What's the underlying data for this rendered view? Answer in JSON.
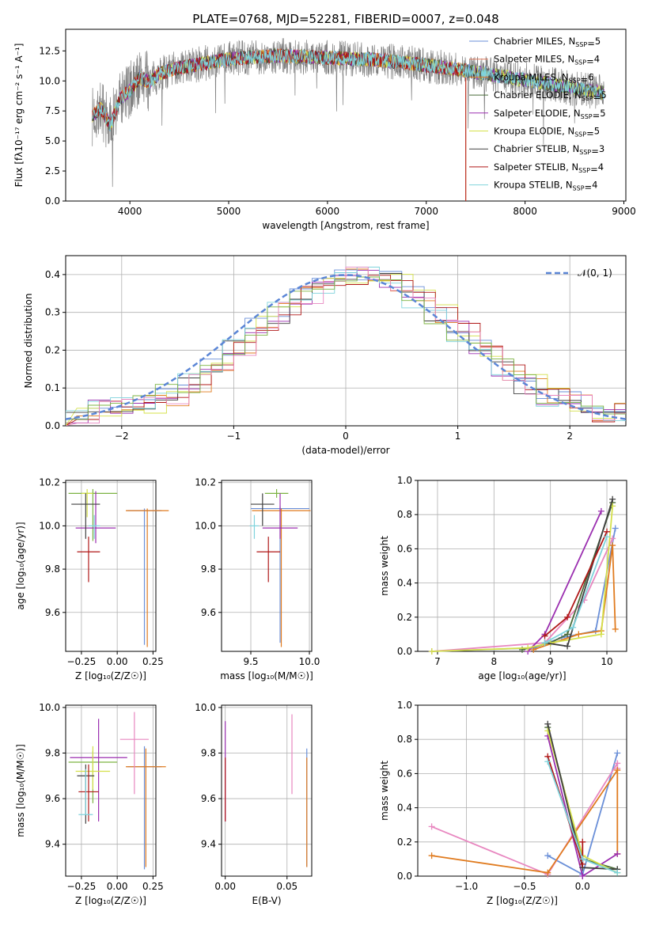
{
  "figure_title": "PLATE=0768, MJD=52281, FIBERID=0007, z=0.048",
  "colors": {
    "Chabrier MILES": "#6a8fd8",
    "Salpeter MILES": "#e07a5f",
    "Kroupa MILES": "#e07b1f",
    "Chabrier ELODIE": "#4a6b3a",
    "Salpeter ELODIE": "#9b2fb0",
    "Kroupa ELODIE": "#d4e04a",
    "Chabrier STELIB": "#404040",
    "Salpeter STELIB": "#b01818",
    "Kroupa STELIB": "#7fd3dc",
    "extra_pink": "#e887c0",
    "extra_green": "#7cb342",
    "data": "#808080",
    "normal": "#5b86d6",
    "grid": "#b0b0b0"
  },
  "chart_data": [
    {
      "type": "line",
      "panel": "spectrum",
      "title": "PLATE=0768, MJD=52281, FIBERID=0007, z=0.048",
      "xlabel": "wavelength [Angstrom, rest frame]",
      "ylabel": "Flux [fλ10⁻¹⁷ erg cm⁻² s⁻¹ A⁻¹]",
      "xlim": [
        3350,
        9020
      ],
      "ylim": [
        0,
        14.3
      ],
      "xticks": [
        4000,
        5000,
        6000,
        7000,
        8000,
        9000
      ],
      "yticks": [
        0.0,
        2.5,
        5.0,
        7.5,
        10.0,
        12.5
      ],
      "ytick_labels": [
        "0.0",
        "2.5",
        "5.0",
        "7.5",
        "10.0",
        "12.5"
      ],
      "legend_position": "right",
      "legend": [
        {
          "name": "Chabrier MILES",
          "nssp": "5"
        },
        {
          "name": "Salpeter MILES",
          "nssp": "4"
        },
        {
          "name": "Kroupa MILES",
          "nssp": "6"
        },
        {
          "name": "Chabrier ELODIE",
          "nssp": "5"
        },
        {
          "name": "Salpeter ELODIE",
          "nssp": "5"
        },
        {
          "name": "Kroupa ELODIE",
          "nssp": "5"
        },
        {
          "name": "Chabrier STELIB",
          "nssp": "3"
        },
        {
          "name": "Salpeter STELIB",
          "nssp": "4"
        },
        {
          "name": "Kroupa STELIB",
          "nssp": "4"
        }
      ],
      "model_continuum": {
        "wavelength": [
          3620,
          3700,
          3800,
          3900,
          4000,
          4100,
          4200,
          4300,
          4500,
          4700,
          4900,
          5100,
          5300,
          5500,
          5800,
          6100,
          6400,
          6700,
          7000,
          7300,
          7600,
          7900,
          8200,
          8500,
          8800
        ],
        "flux": [
          7.0,
          7.8,
          6.3,
          8.5,
          9.2,
          10.3,
          9.9,
          10.6,
          11.1,
          11.4,
          11.7,
          11.9,
          12.0,
          12.1,
          12.0,
          11.9,
          11.8,
          11.6,
          11.3,
          11.0,
          10.6,
          10.2,
          9.8,
          9.4,
          9.0
        ]
      }
    },
    {
      "type": "line",
      "panel": "residual_distribution",
      "xlabel": "(data-model)/error",
      "ylabel": "Normed distribution",
      "xlim": [
        -2.5,
        2.5
      ],
      "ylim": [
        0,
        0.45
      ],
      "xticks": [
        -2,
        -1,
        0,
        1,
        2
      ],
      "xtick_labels": [
        "−2",
        "−1",
        "0",
        "1",
        "2"
      ],
      "yticks": [
        0.0,
        0.1,
        0.2,
        0.3,
        0.4
      ],
      "ytick_labels": [
        "0.0",
        "0.1",
        "0.2",
        "0.3",
        "0.4"
      ],
      "legend": "𝒩(0, 1)",
      "legend_position": "top-right",
      "bins": [
        -2.5,
        -2.3,
        -2.1,
        -1.9,
        -1.7,
        -1.5,
        -1.3,
        -1.1,
        -0.9,
        -0.7,
        -0.5,
        -0.3,
        -0.1,
        0.1,
        0.3,
        0.5,
        0.7,
        0.9,
        1.1,
        1.3,
        1.5,
        1.7,
        1.9,
        2.1,
        2.3
      ],
      "histogram_mean": [
        0.03,
        0.04,
        0.05,
        0.06,
        0.08,
        0.11,
        0.15,
        0.2,
        0.26,
        0.3,
        0.34,
        0.37,
        0.39,
        0.4,
        0.38,
        0.34,
        0.3,
        0.25,
        0.2,
        0.15,
        0.11,
        0.08,
        0.06,
        0.04,
        0.03
      ]
    },
    {
      "type": "scatter",
      "panel": "age_vs_Z",
      "xlabel": "Z [log₁₀(Z/Z☉)]",
      "ylabel": "age  [log₁₀(age/yr)]",
      "xlim": [
        -0.36,
        0.27
      ],
      "ylim": [
        9.42,
        10.21
      ],
      "xticks": [
        -0.25,
        0.0,
        0.25
      ],
      "xtick_labels": [
        "−0.25",
        "0.00",
        "0.25"
      ],
      "yticks": [
        9.6,
        9.8,
        10.0,
        10.2
      ],
      "ytick_labels": [
        "9.6",
        "9.8",
        "10.0",
        "10.2"
      ]
    },
    {
      "type": "scatter",
      "panel": "age_vs_mass",
      "xlabel": "mass [log₁₀(M/M☉)]",
      "xlim": [
        9.25,
        10.02
      ],
      "ylim": [
        9.42,
        10.21
      ],
      "xticks": [
        9.5,
        10.0
      ],
      "xtick_labels": [
        "9.5",
        "10.0"
      ],
      "yticks": [
        9.6,
        9.8,
        10.0,
        10.2
      ],
      "ytick_labels": [
        "9.6",
        "9.8",
        "10.0",
        "10.2"
      ]
    },
    {
      "type": "line",
      "panel": "weight_vs_age",
      "xlabel": "age  [log₁₀(age/yr)]",
      "ylabel": "mass weight",
      "xlim": [
        6.65,
        10.35
      ],
      "ylim": [
        0,
        1.0
      ],
      "xticks": [
        7,
        8,
        9,
        10
      ],
      "xtick_labels": [
        "7",
        "8",
        "9",
        "10"
      ],
      "yticks": [
        0.0,
        0.2,
        0.4,
        0.6,
        0.8,
        1.0
      ],
      "ytick_labels": [
        "0.0",
        "0.2",
        "0.4",
        "0.6",
        "0.8",
        "1.0"
      ],
      "series": [
        {
          "name": "Chabrier MILES",
          "x": [
            6.9,
            8.7,
            9.2,
            9.8,
            10.15
          ],
          "y": [
            0.0,
            0.02,
            0.08,
            0.12,
            0.72
          ]
        },
        {
          "name": "Salpeter MILES",
          "x": [
            6.9,
            8.9,
            9.6,
            10.1
          ],
          "y": [
            0.0,
            0.05,
            0.3,
            0.66
          ]
        },
        {
          "name": "Kroupa MILES",
          "x": [
            8.7,
            9.5,
            9.9,
            10.1,
            10.15
          ],
          "y": [
            0.01,
            0.1,
            0.12,
            0.62,
            0.13
          ]
        },
        {
          "name": "Chabrier ELODIE",
          "x": [
            8.5,
            9.0,
            9.3,
            10.1
          ],
          "y": [
            0.01,
            0.05,
            0.1,
            0.87
          ]
        },
        {
          "name": "Salpeter ELODIE",
          "x": [
            8.6,
            8.9,
            9.9
          ],
          "y": [
            0.0,
            0.1,
            0.82
          ]
        },
        {
          "name": "Kroupa ELODIE",
          "x": [
            6.9,
            8.6,
            9.0,
            9.9,
            10.1
          ],
          "y": [
            0.0,
            0.02,
            0.05,
            0.1,
            0.85
          ]
        },
        {
          "name": "Chabrier STELIB",
          "x": [
            8.9,
            9.3,
            10.1
          ],
          "y": [
            0.05,
            0.03,
            0.89
          ]
        },
        {
          "name": "Salpeter STELIB",
          "x": [
            8.9,
            9.3,
            10.0
          ],
          "y": [
            0.09,
            0.2,
            0.7
          ]
        },
        {
          "name": "Kroupa STELIB",
          "x": [
            8.9,
            9.4,
            10.0
          ],
          "y": [
            0.05,
            0.14,
            0.67
          ]
        }
      ]
    },
    {
      "type": "scatter",
      "panel": "mass_vs_Z",
      "xlabel": "Z [log₁₀(Z/Z☉)]",
      "ylabel": "mass [log₁₀(M/M☉)]",
      "xlim": [
        -0.36,
        0.27
      ],
      "ylim": [
        9.26,
        10.01
      ],
      "xticks": [
        -0.25,
        0.0,
        0.25
      ],
      "xtick_labels": [
        "−0.25",
        "0.00",
        "0.25"
      ],
      "yticks": [
        9.4,
        9.6,
        9.8,
        10.0
      ],
      "ytick_labels": [
        "9.4",
        "9.6",
        "9.8",
        "10.0"
      ]
    },
    {
      "type": "scatter",
      "panel": "mass_vs_EBV",
      "xlabel": "E(B-V)",
      "xlim": [
        -0.003,
        0.07
      ],
      "ylim": [
        9.26,
        10.01
      ],
      "xticks": [
        0.0,
        0.05
      ],
      "xtick_labels": [
        "0.00",
        "0.05"
      ],
      "yticks": [
        9.4,
        9.6,
        9.8,
        10.0
      ],
      "ytick_labels": [
        "9.4",
        "9.6",
        "9.8",
        "10.0"
      ]
    },
    {
      "type": "line",
      "panel": "weight_vs_Z",
      "xlabel": "Z [log₁₀(Z/Z☉)]",
      "ylabel": "mass weight",
      "xlim": [
        -1.42,
        0.38
      ],
      "ylim": [
        0,
        1.0
      ],
      "xticks": [
        -1.0,
        -0.5,
        0.0
      ],
      "xtick_labels": [
        "−1.0",
        "−0.5",
        "0.0"
      ],
      "yticks": [
        0.0,
        0.2,
        0.4,
        0.6,
        0.8,
        1.0
      ],
      "ytick_labels": [
        "0.0",
        "0.2",
        "0.4",
        "0.6",
        "0.8",
        "1.0"
      ],
      "series": [
        {
          "name": "Chabrier MILES",
          "x": [
            -0.3,
            0.0,
            0.3
          ],
          "y": [
            0.12,
            0.01,
            0.72
          ]
        },
        {
          "name": "Salpeter MILES",
          "x": [
            -1.3,
            -0.3,
            0.3,
            0.3
          ],
          "y": [
            0.29,
            0.01,
            0.66,
            0.63
          ]
        },
        {
          "name": "Kroupa MILES",
          "x": [
            -1.3,
            -0.3,
            0.3,
            0.3
          ],
          "y": [
            0.12,
            0.02,
            0.62,
            0.13
          ]
        },
        {
          "name": "Chabrier ELODIE",
          "x": [
            -0.3,
            0.0,
            0.3
          ],
          "y": [
            0.87,
            0.1,
            0.04
          ]
        },
        {
          "name": "Salpeter ELODIE",
          "x": [
            -0.3,
            0.0,
            0.3
          ],
          "y": [
            0.82,
            0.0,
            0.13
          ]
        },
        {
          "name": "Kroupa ELODIE",
          "x": [
            -0.3,
            0.0,
            0.3
          ],
          "y": [
            0.85,
            0.12,
            0.02
          ]
        },
        {
          "name": "Chabrier STELIB",
          "x": [
            -0.3,
            0.0,
            0.3
          ],
          "y": [
            0.89,
            0.05,
            0.04
          ]
        },
        {
          "name": "Salpeter STELIB",
          "x": [
            -0.3,
            0.0,
            0.0
          ],
          "y": [
            0.7,
            0.07,
            0.2
          ]
        },
        {
          "name": "Kroupa STELIB",
          "x": [
            -0.3,
            0.0,
            0.3
          ],
          "y": [
            0.67,
            0.1,
            0.02
          ]
        }
      ]
    }
  ]
}
